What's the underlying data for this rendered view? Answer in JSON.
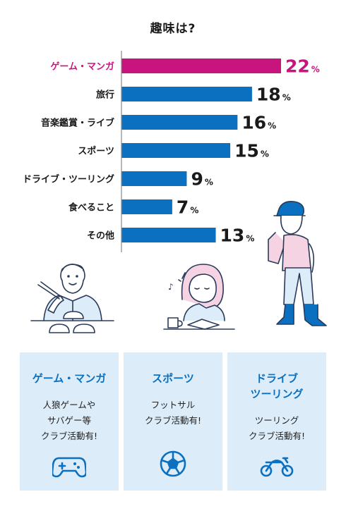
{
  "chart_data": {
    "type": "bar",
    "orientation": "horizontal",
    "title": "趣味は?",
    "unit": "%",
    "categories": [
      "ゲーム・マンガ",
      "旅行",
      "音楽鑑賞・ライブ",
      "スポーツ",
      "ドライブ・ツーリング",
      "食べること",
      "その他"
    ],
    "values": [
      22,
      18,
      16,
      15,
      9,
      7,
      13
    ],
    "highlight_index": 0,
    "colors": {
      "highlight": "#c8157e",
      "default": "#0b70c0",
      "axis": "#888888"
    },
    "xlim": [
      0,
      22
    ]
  },
  "cards": [
    {
      "title": "ゲーム・マンガ",
      "desc": "人狼ゲームや\nサバゲー等\nクラブ活動有!",
      "icon": "gamepad-icon"
    },
    {
      "title": "スポーツ",
      "desc": "フットサル\nクラブ活動有!",
      "icon": "soccer-ball-icon"
    },
    {
      "title": "ドライブ\nツーリング",
      "desc": "ツーリング\nクラブ活動有!",
      "icon": "motorcycle-icon"
    }
  ],
  "theme": {
    "card_bg": "#dcecf8",
    "accent": "#0b70c0",
    "line": "#2a3a5a"
  }
}
